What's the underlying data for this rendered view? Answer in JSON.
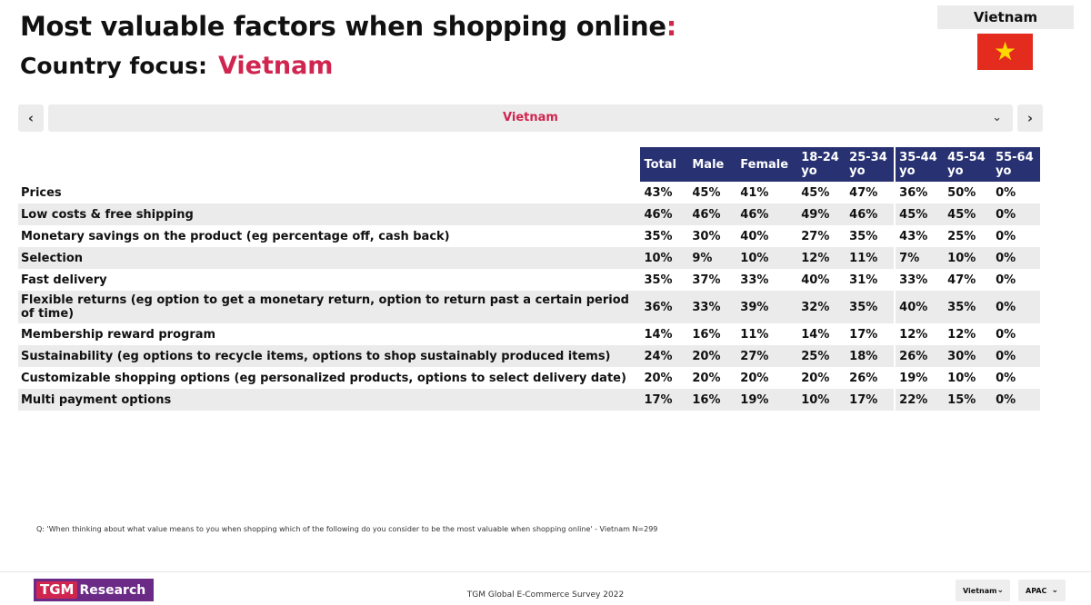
{
  "header": {
    "title": "Most valuable factors when shopping online",
    "title_colon": ":",
    "subtitle": "Country focus:",
    "country": "Vietnam"
  },
  "flag_box": {
    "label": "Vietnam",
    "flag_symbol": "★"
  },
  "selector": {
    "value": "Vietnam",
    "prev": "‹",
    "next": "›",
    "chevron": "⌄"
  },
  "table": {
    "columns": [
      "Total",
      "Male",
      "Female",
      "18-24 yo",
      "25-34 yo",
      "35-44 yo",
      "45-54 yo",
      "55-64 yo"
    ],
    "rows": [
      {
        "label": "Prices",
        "values": [
          "43%",
          "45%",
          "41%",
          "45%",
          "47%",
          "36%",
          "50%",
          "0%"
        ]
      },
      {
        "label": "Low costs & free shipping",
        "values": [
          "46%",
          "46%",
          "46%",
          "49%",
          "46%",
          "45%",
          "45%",
          "0%"
        ]
      },
      {
        "label": "Monetary savings on the product (eg percentage off, cash back)",
        "values": [
          "35%",
          "30%",
          "40%",
          "27%",
          "35%",
          "43%",
          "25%",
          "0%"
        ]
      },
      {
        "label": "Selection",
        "values": [
          "10%",
          "9%",
          "10%",
          "12%",
          "11%",
          "7%",
          "10%",
          "0%"
        ]
      },
      {
        "label": "Fast delivery",
        "values": [
          "35%",
          "37%",
          "33%",
          "40%",
          "31%",
          "33%",
          "47%",
          "0%"
        ]
      },
      {
        "label": "Flexible returns (eg option to get a monetary return, option to return past a certain period of time)",
        "values": [
          "36%",
          "33%",
          "39%",
          "32%",
          "35%",
          "40%",
          "35%",
          "0%"
        ]
      },
      {
        "label": "Membership reward program",
        "values": [
          "14%",
          "16%",
          "11%",
          "14%",
          "17%",
          "12%",
          "12%",
          "0%"
        ]
      },
      {
        "label": "Sustainability (eg options to recycle items, options to shop sustainably produced items)",
        "values": [
          "24%",
          "20%",
          "27%",
          "25%",
          "18%",
          "26%",
          "30%",
          "0%"
        ]
      },
      {
        "label": "Customizable shopping options (eg personalized products, options to select delivery date)",
        "values": [
          "20%",
          "20%",
          "20%",
          "20%",
          "26%",
          "19%",
          "10%",
          "0%"
        ]
      },
      {
        "label": "Multi payment options",
        "values": [
          "17%",
          "16%",
          "19%",
          "10%",
          "17%",
          "22%",
          "15%",
          "0%"
        ]
      }
    ]
  },
  "footnote": "Q: 'When thinking about what value means to you when shopping which of the following do you consider to be the most valuable when shopping online' - Vietnam N=299",
  "footer": {
    "logo_tgm": "TGM",
    "logo_research": "Research",
    "survey": "TGM Global E-Commerce Survey 2022",
    "country_select": "Vietnam",
    "region_select": "APAC",
    "chevron": "⌄"
  },
  "colors": {
    "accent": "#d0254f",
    "header_bg": "#283172",
    "stripe": "#ebebeb"
  }
}
